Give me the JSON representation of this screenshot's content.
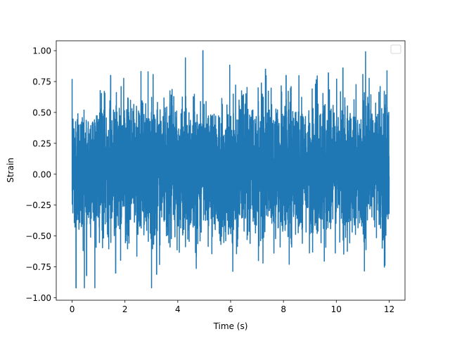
{
  "chart_data": {
    "type": "line",
    "title": "",
    "xlabel": "Time (s)",
    "ylabel": "Strain",
    "xlim": [
      -0.6,
      12.6
    ],
    "ylim": [
      -1.02,
      1.08
    ],
    "xticks": [
      0,
      2,
      4,
      6,
      8,
      10,
      12
    ],
    "xtick_labels": [
      "0",
      "2",
      "4",
      "6",
      "8",
      "10",
      "12"
    ],
    "yticks": [
      -1.0,
      -0.75,
      -0.5,
      -0.25,
      0.0,
      0.25,
      0.5,
      0.75,
      1.0
    ],
    "ytick_labels": [
      "−1.00",
      "−0.75",
      "−0.50",
      "−0.25",
      "0.00",
      "0.25",
      "0.50",
      "0.75",
      "1.00"
    ],
    "grid": false,
    "legend": {
      "placement": "top-right",
      "entries": []
    },
    "series": [
      {
        "color": "#1f77b4",
        "x_range": [
          0,
          12
        ],
        "y_range": [
          -0.92,
          1.0
        ],
        "typical_band": [
          -0.45,
          0.55
        ],
        "peaks": [
          {
            "x": 4.95,
            "y": 1.0
          },
          {
            "x": 10.25,
            "y": 0.86
          },
          {
            "x": 7.32,
            "y": 0.85
          },
          {
            "x": 1.46,
            "y": 0.8
          },
          {
            "x": 9.7,
            "y": 0.82
          },
          {
            "x": 8.1,
            "y": 0.8
          },
          {
            "x": 0.15,
            "y": -0.92
          },
          {
            "x": 0.55,
            "y": -0.82
          },
          {
            "x": 3.2,
            "y": -0.81
          },
          {
            "x": 1.65,
            "y": -0.8
          }
        ]
      }
    ]
  }
}
